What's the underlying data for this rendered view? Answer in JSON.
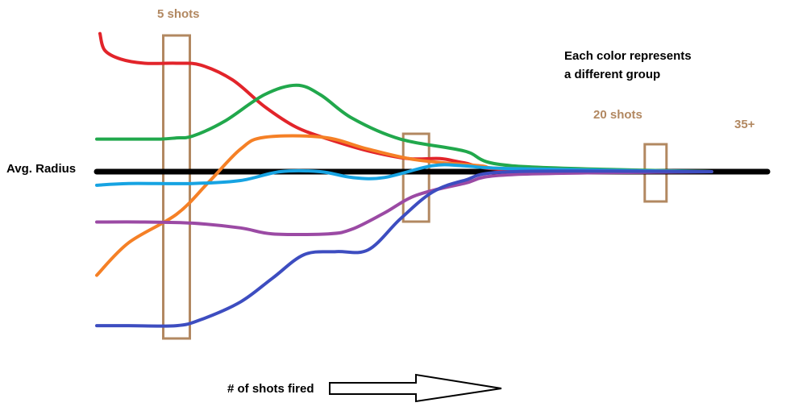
{
  "chart_data": {
    "type": "line",
    "title": "",
    "ylabel": "Avg. Radius",
    "xlabel": "# of shots fired",
    "note": [
      "Each color represents",
      "a different group"
    ],
    "xlim": [
      0,
      42
    ],
    "ylim": [
      -2.6,
      2.6
    ],
    "grid": false,
    "legend": "none",
    "reference_line": {
      "name": "Avg. Radius",
      "y": 0,
      "color": "#000000"
    },
    "annotations": [
      {
        "label": "5 shots",
        "x": 5,
        "color": "#b28861"
      },
      {
        "label": "20 shots",
        "x": 20,
        "color": "#b28861"
      },
      {
        "label": "35+",
        "x": 35,
        "color": "#b28861"
      }
    ],
    "series": [
      {
        "color": "#e2242a",
        "x": [
          0.2,
          0.5,
          1.5,
          3,
          5,
          6.5,
          8.5,
          10.5,
          12.5,
          14.5,
          17,
          19.5,
          21.5,
          23,
          26
        ],
        "y": [
          2.33,
          2.05,
          1.9,
          1.83,
          1.83,
          1.8,
          1.55,
          1.1,
          0.75,
          0.55,
          0.35,
          0.22,
          0.22,
          0.15,
          0.03
        ]
      },
      {
        "color": "#21a84c",
        "x": [
          0,
          2,
          4,
          5,
          6,
          8,
          10.5,
          12.5,
          14,
          16,
          19,
          23,
          26
        ],
        "y": [
          0.55,
          0.55,
          0.55,
          0.57,
          0.6,
          0.85,
          1.3,
          1.46,
          1.3,
          0.9,
          0.55,
          0.35,
          0.1
        ]
      },
      {
        "color": "#f58026",
        "x": [
          0,
          2,
          5,
          7,
          9,
          10.5,
          14.2,
          17,
          20,
          24,
          26
        ],
        "y": [
          -1.75,
          -1.2,
          -0.72,
          -0.18,
          0.38,
          0.58,
          0.58,
          0.38,
          0.2,
          0.1,
          0.05
        ]
      },
      {
        "color": "#16a3e2",
        "x": [
          0,
          2,
          6,
          9,
          11.5,
          14,
          16,
          18,
          21,
          23,
          26
        ],
        "y": [
          -0.23,
          -0.2,
          -0.2,
          -0.15,
          0.0,
          0.0,
          -0.1,
          -0.1,
          0.1,
          0.1,
          0.05
        ]
      },
      {
        "color": "#9b4aa4",
        "x": [
          0,
          3,
          6,
          9,
          11,
          14.5,
          16,
          18,
          20,
          23,
          26
        ],
        "y": [
          -0.85,
          -0.85,
          -0.87,
          -0.95,
          -1.05,
          -1.05,
          -0.97,
          -0.7,
          -0.4,
          -0.2,
          -0.05
        ]
      },
      {
        "color": "#3d4dc0",
        "x": [
          0,
          2,
          5,
          6.5,
          9,
          11,
          13,
          15,
          17,
          19,
          21,
          23,
          26
        ],
        "y": [
          -2.6,
          -2.6,
          -2.6,
          -2.5,
          -2.2,
          -1.8,
          -1.4,
          -1.35,
          -1.32,
          -0.8,
          -0.35,
          -0.15,
          0.0
        ]
      }
    ]
  }
}
